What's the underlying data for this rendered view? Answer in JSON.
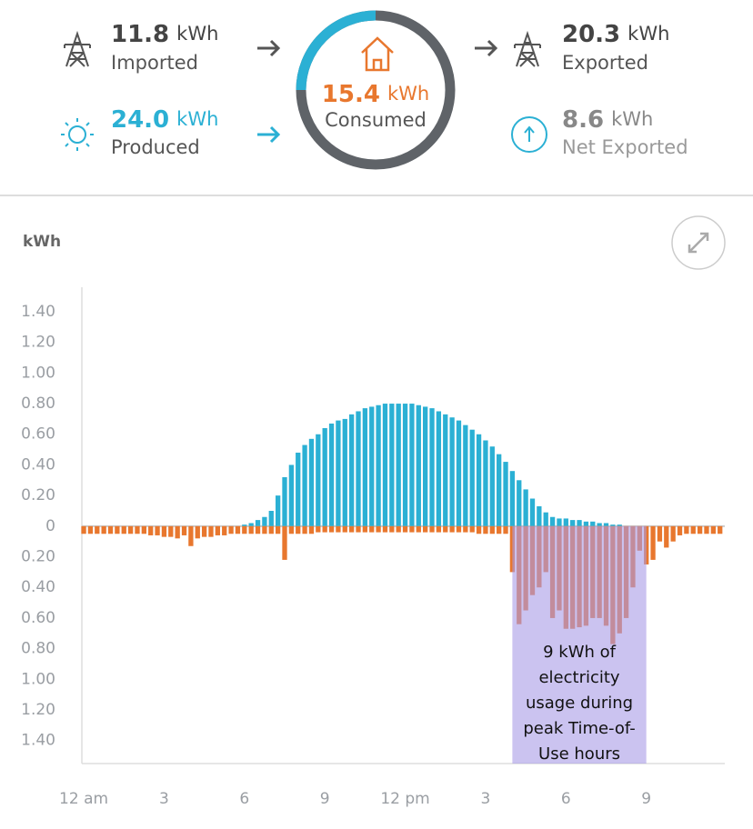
{
  "summary": {
    "imported": {
      "value": "11.8",
      "unit": "kWh",
      "label": "Imported"
    },
    "produced": {
      "value": "24.0",
      "unit": "kWh",
      "label": "Produced"
    },
    "consumed": {
      "value": "15.4",
      "unit": "kWh",
      "label": "Consumed"
    },
    "exported": {
      "value": "20.3",
      "unit": "kWh",
      "label": "Exported"
    },
    "net_exported": {
      "value": "8.6",
      "unit": "kWh",
      "label": "Net Exported"
    }
  },
  "chart_data": {
    "type": "bar",
    "y_label": "kWh",
    "x": [
      0,
      0.25,
      0.5,
      0.75,
      1,
      1.25,
      1.5,
      1.75,
      2,
      2.25,
      2.5,
      2.75,
      3,
      3.25,
      3.5,
      3.75,
      4,
      4.25,
      4.5,
      4.75,
      5,
      5.25,
      5.5,
      5.75,
      6,
      6.25,
      6.5,
      6.75,
      7,
      7.25,
      7.5,
      7.75,
      8,
      8.25,
      8.5,
      8.75,
      9,
      9.25,
      9.5,
      9.75,
      10,
      10.25,
      10.5,
      10.75,
      11,
      11.25,
      11.5,
      11.75,
      12,
      12.25,
      12.5,
      12.75,
      13,
      13.25,
      13.5,
      13.75,
      14,
      14.25,
      14.5,
      14.75,
      15,
      15.25,
      15.5,
      15.75,
      16,
      16.25,
      16.5,
      16.75,
      17,
      17.25,
      17.5,
      17.75,
      18,
      18.25,
      18.5,
      18.75,
      19,
      19.25,
      19.5,
      19.75,
      20,
      20.25,
      20.5,
      20.75,
      21,
      21.25,
      21.5,
      21.75,
      22,
      22.25,
      22.5,
      22.75,
      23,
      23.25,
      23.5,
      23.75
    ],
    "xlim": [
      -0.07,
      23.93
    ],
    "xticks": [
      {
        "value": 0,
        "label": "12 am"
      },
      3,
      6,
      9,
      {
        "value": 12,
        "label": "12 pm"
      },
      {
        "value": 15,
        "label": "3"
      },
      {
        "value": 18,
        "label": "6"
      },
      {
        "value": 21,
        "label": "9"
      }
    ],
    "ylim": [
      -1.55,
      1.56
    ],
    "yticks": [
      {
        "value": 1.4,
        "label": "1.40"
      },
      {
        "value": 1.2,
        "label": "1.20"
      },
      {
        "value": 1.0,
        "label": "1.00"
      },
      {
        "value": 0.8,
        "label": "0.80"
      },
      {
        "value": 0.6,
        "label": "0.60"
      },
      {
        "value": 0.4,
        "label": "0.40"
      },
      {
        "value": 0.2,
        "label": "0.20"
      },
      0,
      {
        "value": -0.2,
        "label": "0.20"
      },
      {
        "value": -0.4,
        "label": "0.40"
      },
      {
        "value": -0.6,
        "label": "0.60"
      },
      {
        "value": -0.8,
        "label": "0.80"
      },
      {
        "value": -1.0,
        "label": "1.00"
      },
      {
        "value": -1.2,
        "label": "1.20"
      },
      {
        "value": -1.4,
        "label": "1.40"
      }
    ],
    "grid": false,
    "series": [
      {
        "color": "#2bb0d4",
        "values": [
          0,
          0,
          0,
          0,
          0,
          0,
          0,
          0,
          0,
          0,
          0,
          0,
          0,
          0,
          0,
          0,
          0,
          0,
          0,
          0,
          0,
          0,
          0,
          0,
          0.01,
          0.02,
          0.04,
          0.06,
          0.1,
          0.2,
          0.32,
          0.4,
          0.48,
          0.53,
          0.57,
          0.6,
          0.64,
          0.67,
          0.69,
          0.7,
          0.73,
          0.75,
          0.77,
          0.78,
          0.79,
          0.8,
          0.8,
          0.8,
          0.8,
          0.8,
          0.79,
          0.78,
          0.77,
          0.75,
          0.73,
          0.71,
          0.69,
          0.66,
          0.63,
          0.6,
          0.56,
          0.52,
          0.47,
          0.42,
          0.36,
          0.3,
          0.24,
          0.18,
          0.13,
          0.09,
          0.06,
          0.05,
          0.05,
          0.04,
          0.04,
          0.03,
          0.03,
          0.02,
          0.02,
          0.01,
          0.01,
          0,
          0,
          0,
          0,
          0,
          0,
          0,
          0,
          0,
          0,
          0,
          0,
          0,
          0,
          0
        ]
      },
      {
        "color": "#e8772e",
        "values": [
          -0.05,
          -0.05,
          -0.05,
          -0.05,
          -0.05,
          -0.05,
          -0.05,
          -0.05,
          -0.05,
          -0.05,
          -0.06,
          -0.06,
          -0.07,
          -0.07,
          -0.08,
          -0.06,
          -0.13,
          -0.08,
          -0.07,
          -0.07,
          -0.06,
          -0.06,
          -0.05,
          -0.05,
          -0.05,
          -0.05,
          -0.05,
          -0.05,
          -0.05,
          -0.05,
          -0.22,
          -0.05,
          -0.05,
          -0.05,
          -0.05,
          -0.04,
          -0.04,
          -0.04,
          -0.04,
          -0.04,
          -0.04,
          -0.04,
          -0.04,
          -0.04,
          -0.04,
          -0.04,
          -0.04,
          -0.04,
          -0.04,
          -0.04,
          -0.04,
          -0.04,
          -0.04,
          -0.04,
          -0.04,
          -0.04,
          -0.04,
          -0.04,
          -0.04,
          -0.05,
          -0.05,
          -0.05,
          -0.05,
          -0.05,
          -0.3,
          -0.64,
          -0.55,
          -0.45,
          -0.4,
          -0.3,
          -0.6,
          -0.55,
          -0.67,
          -0.67,
          -0.66,
          -0.65,
          -0.6,
          -0.6,
          -0.65,
          -0.77,
          -0.7,
          -0.6,
          -0.4,
          -0.16,
          -0.25,
          -0.22,
          -0.1,
          -0.14,
          -0.1,
          -0.06,
          -0.05,
          -0.05,
          -0.05,
          -0.05,
          -0.05,
          -0.05
        ]
      }
    ],
    "highlight": {
      "x": [
        16,
        21
      ],
      "color": "#a99be6",
      "text": [
        "9 kWh of",
        "electricity",
        "usage during",
        "peak Time-of-",
        "Use hours"
      ]
    }
  }
}
